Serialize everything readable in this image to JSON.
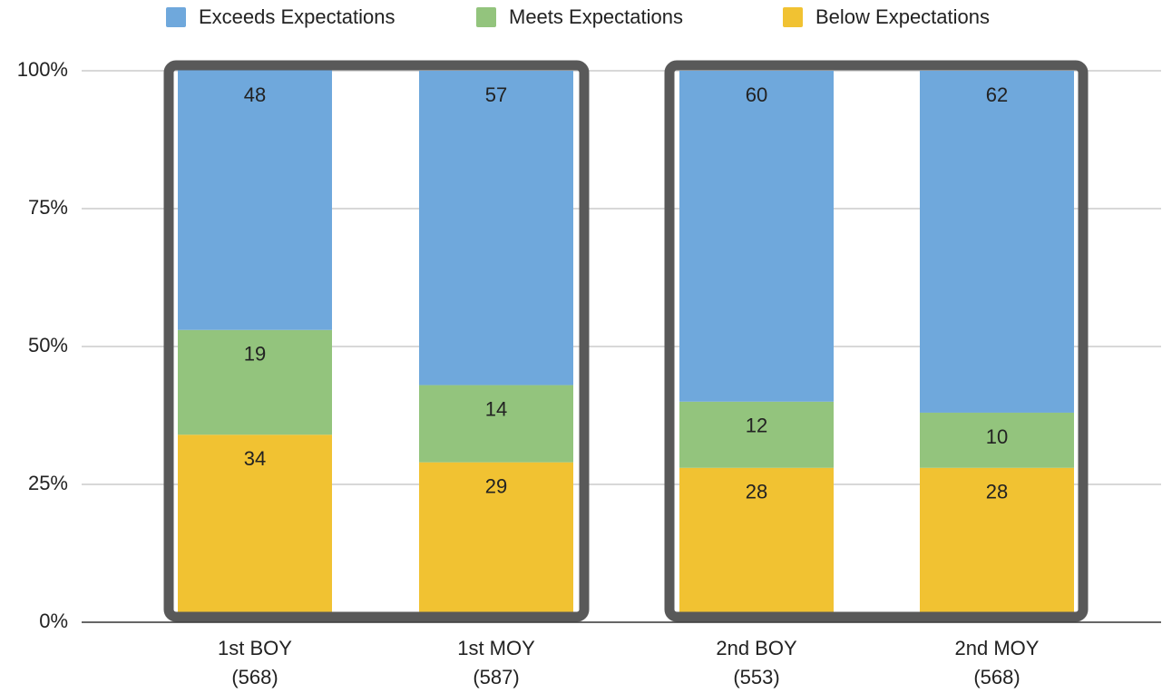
{
  "chart_data": {
    "type": "stacked_bar",
    "categories": [
      [
        "1st BOY",
        "(568)"
      ],
      [
        "1st MOY",
        "(587)"
      ],
      [
        "2nd BOY",
        "(553)"
      ],
      [
        "2nd MOY",
        "(568)"
      ]
    ],
    "series": [
      {
        "name": "Below Expectations",
        "color": "#f1c232",
        "values": [
          34,
          29,
          28,
          28
        ]
      },
      {
        "name": "Meets Expectations",
        "color": "#93c47d",
        "values": [
          19,
          14,
          12,
          10
        ]
      },
      {
        "name": "Exceeds Expectations",
        "color": "#6fa8dc",
        "values": [
          48,
          57,
          60,
          62
        ]
      }
    ],
    "ylim": [
      0,
      100
    ],
    "yticks": [
      {
        "value": 0,
        "label": "0%"
      },
      {
        "value": 25,
        "label": "25%"
      },
      {
        "value": 50,
        "label": "50%"
      },
      {
        "value": 75,
        "label": "75%"
      },
      {
        "value": 100,
        "label": "100%"
      }
    ],
    "grid": true,
    "legend": "top"
  }
}
